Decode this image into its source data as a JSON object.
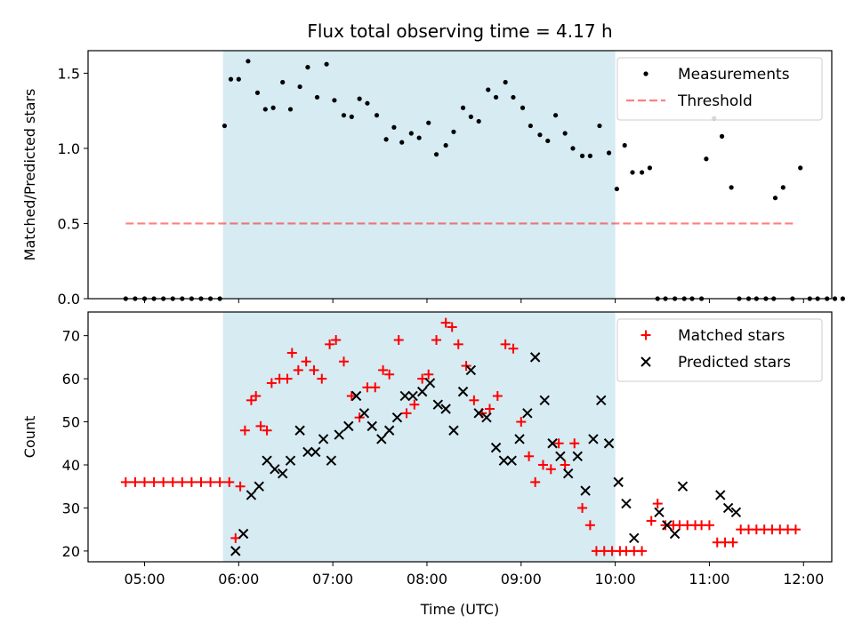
{
  "colors": {
    "shade": "#add8e6",
    "threshold": "#ff0000",
    "measurement": "#000000",
    "matched": "#ff0000",
    "predicted": "#000000"
  },
  "chart_data": {
    "type": "scatter",
    "title": "Flux total observing time = 4.17 h",
    "xlabel": "Time (UTC)",
    "x_ticks": [
      "05:00",
      "06:00",
      "07:00",
      "08:00",
      "09:00",
      "10:00",
      "11:00",
      "12:00"
    ],
    "shaded_interval": [
      "05:50",
      "10:00"
    ],
    "panels": [
      {
        "name": "ratio",
        "ylabel": "Matched/Predicted stars",
        "ylim": [
          0,
          1.65
        ],
        "y_ticks": [
          "0.0",
          "0.5",
          "1.0",
          "1.5"
        ],
        "legend_position": "top-right",
        "threshold": {
          "label": "Threshold",
          "value": 0.5,
          "x_range": [
            "04:48",
            "11:55"
          ]
        },
        "series": [
          {
            "name": "Measurements",
            "points": [
              [
                "04:48",
                0
              ],
              [
                "04:54",
                0
              ],
              [
                "05:00",
                0
              ],
              [
                "05:06",
                0
              ],
              [
                "05:12",
                0
              ],
              [
                "05:18",
                0
              ],
              [
                "05:24",
                0
              ],
              [
                "05:30",
                0
              ],
              [
                "05:36",
                0
              ],
              [
                "05:42",
                0
              ],
              [
                "05:48",
                0
              ],
              [
                "05:51",
                1.15
              ],
              [
                "05:55",
                1.46
              ],
              [
                "06:00",
                1.46
              ],
              [
                "06:06",
                1.58
              ],
              [
                "06:12",
                1.37
              ],
              [
                "06:17",
                1.26
              ],
              [
                "06:22",
                1.27
              ],
              [
                "06:28",
                1.44
              ],
              [
                "06:33",
                1.26
              ],
              [
                "06:39",
                1.41
              ],
              [
                "06:44",
                1.54
              ],
              [
                "06:50",
                1.34
              ],
              [
                "06:56",
                1.56
              ],
              [
                "07:01",
                1.32
              ],
              [
                "07:07",
                1.22
              ],
              [
                "07:12",
                1.21
              ],
              [
                "07:17",
                1.33
              ],
              [
                "07:22",
                1.3
              ],
              [
                "07:28",
                1.22
              ],
              [
                "07:34",
                1.06
              ],
              [
                "07:39",
                1.14
              ],
              [
                "07:44",
                1.04
              ],
              [
                "07:50",
                1.1
              ],
              [
                "07:55",
                1.07
              ],
              [
                "08:01",
                1.17
              ],
              [
                "08:06",
                0.96
              ],
              [
                "08:12",
                1.02
              ],
              [
                "08:17",
                1.11
              ],
              [
                "08:23",
                1.27
              ],
              [
                "08:28",
                1.21
              ],
              [
                "08:33",
                1.18
              ],
              [
                "08:39",
                1.39
              ],
              [
                "08:44",
                1.34
              ],
              [
                "08:50",
                1.44
              ],
              [
                "08:55",
                1.34
              ],
              [
                "09:01",
                1.27
              ],
              [
                "09:06",
                1.15
              ],
              [
                "09:12",
                1.09
              ],
              [
                "09:17",
                1.05
              ],
              [
                "09:22",
                1.22
              ],
              [
                "09:28",
                1.1
              ],
              [
                "09:33",
                1.0
              ],
              [
                "09:39",
                0.95
              ],
              [
                "09:44",
                0.95
              ],
              [
                "09:50",
                1.15
              ],
              [
                "09:56",
                0.97
              ],
              [
                "10:01",
                0.73
              ],
              [
                "10:06",
                1.02
              ],
              [
                "10:11",
                0.84
              ],
              [
                "10:17",
                0.84
              ],
              [
                "10:22",
                0.87
              ],
              [
                "10:27",
                0
              ],
              [
                "10:32",
                0
              ],
              [
                "10:38",
                0
              ],
              [
                "10:44",
                0
              ],
              [
                "10:49",
                0
              ],
              [
                "10:55",
                0
              ],
              [
                "10:58",
                0.93
              ],
              [
                "11:03",
                1.2
              ],
              [
                "11:08",
                1.08
              ],
              [
                "11:14",
                0.74
              ],
              [
                "11:19",
                0
              ],
              [
                "11:25",
                0
              ],
              [
                "11:30",
                0
              ],
              [
                "11:36",
                0
              ],
              [
                "11:41",
                0
              ],
              [
                "11:42",
                0.67
              ],
              [
                "11:47",
                0.74
              ],
              [
                "11:53",
                0
              ],
              [
                "11:58",
                0.87
              ],
              [
                "12:04",
                0
              ],
              [
                "12:09",
                0
              ],
              [
                "12:15",
                0
              ],
              [
                "12:20",
                0
              ],
              [
                "12:25",
                0
              ]
            ]
          }
        ]
      },
      {
        "name": "counts",
        "ylabel": "Count",
        "ylim": [
          17.5,
          75.5
        ],
        "y_ticks": [
          "20",
          "30",
          "40",
          "50",
          "60",
          "70"
        ],
        "legend_position": "top-right",
        "series": [
          {
            "name": "Matched stars",
            "marker": "plus",
            "points": [
              [
                "04:48",
                36
              ],
              [
                "04:54",
                36
              ],
              [
                "05:00",
                36
              ],
              [
                "05:06",
                36
              ],
              [
                "05:12",
                36
              ],
              [
                "05:18",
                36
              ],
              [
                "05:24",
                36
              ],
              [
                "05:30",
                36
              ],
              [
                "05:36",
                36
              ],
              [
                "05:42",
                36
              ],
              [
                "05:48",
                36
              ],
              [
                "05:54",
                36
              ],
              [
                "05:58",
                23
              ],
              [
                "06:01",
                35
              ],
              [
                "06:04",
                48
              ],
              [
                "06:08",
                55
              ],
              [
                "06:11",
                56
              ],
              [
                "06:14",
                49
              ],
              [
                "06:18",
                48
              ],
              [
                "06:21",
                59
              ],
              [
                "06:26",
                60
              ],
              [
                "06:31",
                60
              ],
              [
                "06:34",
                66
              ],
              [
                "06:38",
                62
              ],
              [
                "06:43",
                64
              ],
              [
                "06:48",
                62
              ],
              [
                "06:53",
                60
              ],
              [
                "06:58",
                68
              ],
              [
                "07:02",
                69
              ],
              [
                "07:07",
                64
              ],
              [
                "07:12",
                56
              ],
              [
                "07:17",
                51
              ],
              [
                "07:22",
                58
              ],
              [
                "07:27",
                58
              ],
              [
                "07:32",
                62
              ],
              [
                "07:36",
                61
              ],
              [
                "07:42",
                69
              ],
              [
                "07:47",
                52
              ],
              [
                "07:52",
                54
              ],
              [
                "07:57",
                60
              ],
              [
                "08:01",
                61
              ],
              [
                "08:06",
                69
              ],
              [
                "08:12",
                73
              ],
              [
                "08:16",
                72
              ],
              [
                "08:20",
                68
              ],
              [
                "08:25",
                63
              ],
              [
                "08:30",
                55
              ],
              [
                "08:35",
                52
              ],
              [
                "08:40",
                53
              ],
              [
                "08:45",
                56
              ],
              [
                "08:50",
                68
              ],
              [
                "08:55",
                67
              ],
              [
                "09:00",
                50
              ],
              [
                "09:05",
                42
              ],
              [
                "09:09",
                36
              ],
              [
                "09:14",
                40
              ],
              [
                "09:19",
                39
              ],
              [
                "09:24",
                45
              ],
              [
                "09:28",
                40
              ],
              [
                "09:34",
                45
              ],
              [
                "09:39",
                30
              ],
              [
                "09:44",
                26
              ],
              [
                "09:48",
                20
              ],
              [
                "09:53",
                20
              ],
              [
                "09:58",
                20
              ],
              [
                "10:03",
                20
              ],
              [
                "10:07",
                20
              ],
              [
                "10:12",
                20
              ],
              [
                "10:17",
                20
              ],
              [
                "10:23",
                27
              ],
              [
                "10:27",
                31
              ],
              [
                "10:32",
                26
              ],
              [
                "10:37",
                26
              ],
              [
                "10:41",
                26
              ],
              [
                "10:46",
                26
              ],
              [
                "10:51",
                26
              ],
              [
                "10:55",
                26
              ],
              [
                "11:00",
                26
              ],
              [
                "11:05",
                22
              ],
              [
                "11:10",
                22
              ],
              [
                "11:15",
                22
              ],
              [
                "11:20",
                25
              ],
              [
                "11:25",
                25
              ],
              [
                "11:30",
                25
              ],
              [
                "11:35",
                25
              ],
              [
                "11:40",
                25
              ],
              [
                "11:45",
                25
              ],
              [
                "11:50",
                25
              ],
              [
                "11:55",
                25
              ]
            ]
          },
          {
            "name": "Predicted stars",
            "marker": "x",
            "points": [
              [
                "05:58",
                20
              ],
              [
                "06:03",
                24
              ],
              [
                "06:08",
                33
              ],
              [
                "06:13",
                35
              ],
              [
                "06:18",
                41
              ],
              [
                "06:23",
                39
              ],
              [
                "06:28",
                38
              ],
              [
                "06:33",
                41
              ],
              [
                "06:39",
                48
              ],
              [
                "06:44",
                43
              ],
              [
                "06:49",
                43
              ],
              [
                "06:54",
                46
              ],
              [
                "06:59",
                41
              ],
              [
                "07:04",
                47
              ],
              [
                "07:10",
                49
              ],
              [
                "07:15",
                56
              ],
              [
                "07:20",
                52
              ],
              [
                "07:25",
                49
              ],
              [
                "07:31",
                46
              ],
              [
                "07:36",
                48
              ],
              [
                "07:41",
                51
              ],
              [
                "07:46",
                56
              ],
              [
                "07:51",
                56
              ],
              [
                "07:57",
                57
              ],
              [
                "08:02",
                59
              ],
              [
                "08:07",
                54
              ],
              [
                "08:12",
                53
              ],
              [
                "08:17",
                48
              ],
              [
                "08:23",
                57
              ],
              [
                "08:28",
                62
              ],
              [
                "08:33",
                52
              ],
              [
                "08:38",
                51
              ],
              [
                "08:44",
                44
              ],
              [
                "08:49",
                41
              ],
              [
                "08:54",
                41
              ],
              [
                "08:59",
                46
              ],
              [
                "09:04",
                52
              ],
              [
                "09:09",
                65
              ],
              [
                "09:15",
                55
              ],
              [
                "09:20",
                45
              ],
              [
                "09:25",
                42
              ],
              [
                "09:30",
                38
              ],
              [
                "09:36",
                42
              ],
              [
                "09:41",
                34
              ],
              [
                "09:46",
                46
              ],
              [
                "09:51",
                55
              ],
              [
                "09:56",
                45
              ],
              [
                "10:02",
                36
              ],
              [
                "10:07",
                31
              ],
              [
                "10:12",
                23
              ],
              [
                "10:28",
                29
              ],
              [
                "10:33",
                26
              ],
              [
                "10:38",
                24
              ],
              [
                "10:43",
                35
              ],
              [
                "11:07",
                33
              ],
              [
                "11:12",
                30
              ],
              [
                "11:17",
                29
              ]
            ]
          }
        ]
      }
    ]
  }
}
